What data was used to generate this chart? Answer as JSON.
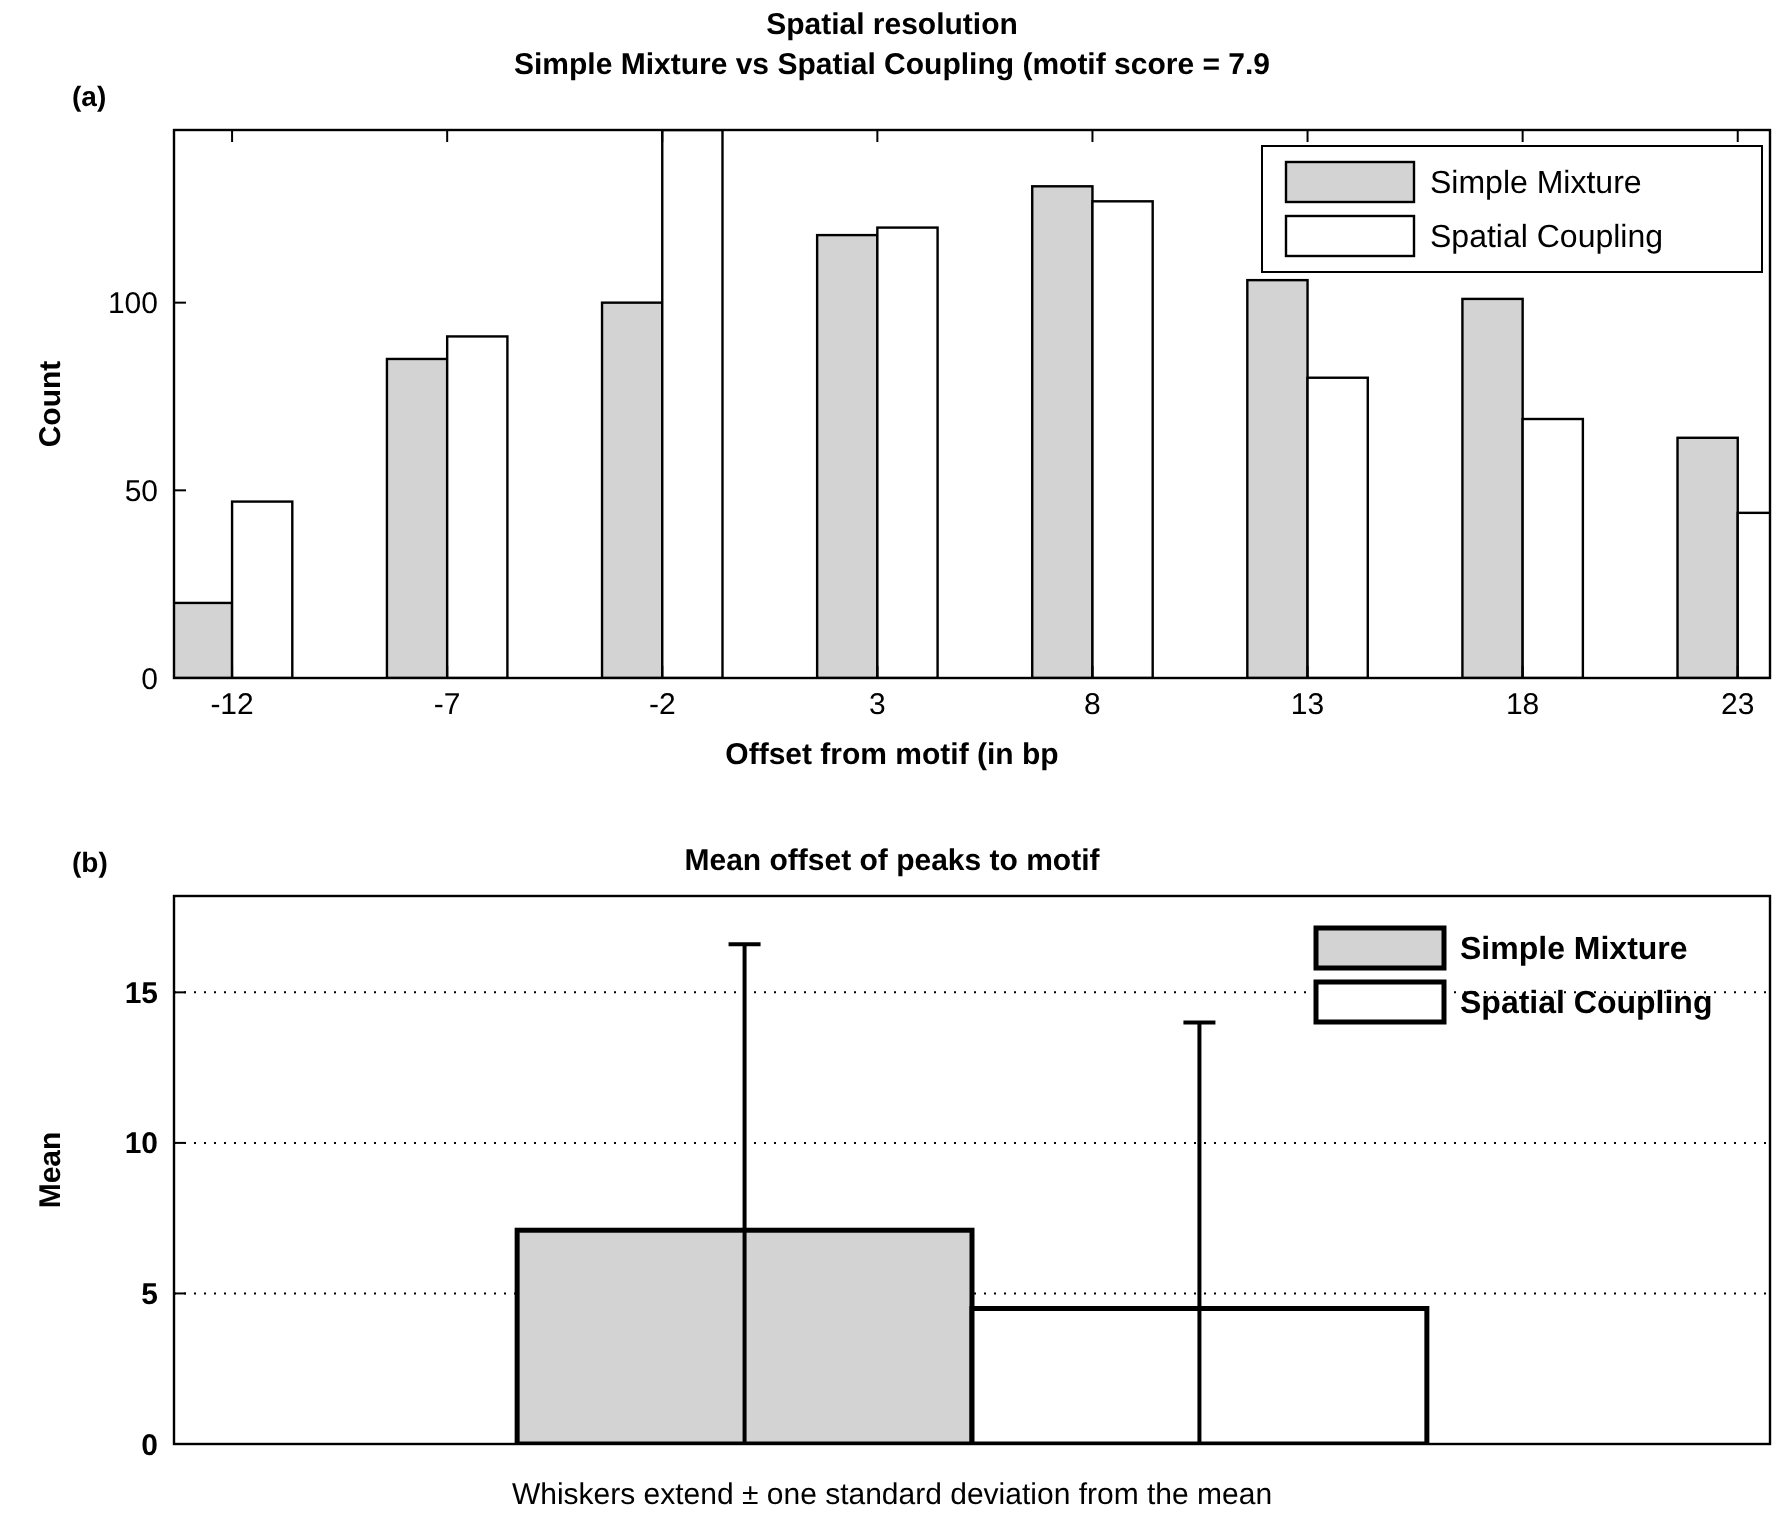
{
  "chart_data": [
    {
      "type": "bar",
      "title": "Spatial resolution",
      "subtitle": "Simple Mixture vs Spatial Coupling (motif score = 7.9",
      "xlabel": "Offset from motif (in bp",
      "ylabel": "Count",
      "annotations": [
        "(a)"
      ],
      "x": [
        -12,
        -7,
        -2,
        3,
        8,
        13,
        18,
        23
      ],
      "series": [
        {
          "name": "Simple Mixture",
          "color": "#d3d3d3",
          "values": [
            20,
            85,
            100,
            118,
            131,
            106,
            101,
            64
          ]
        },
        {
          "name": "Spatial Coupling",
          "color": "#ffffff",
          "values": [
            47,
            91,
            146,
            120,
            127,
            80,
            69,
            44
          ]
        }
      ],
      "xlim": [
        -13.35,
        23.75
      ],
      "xticks": [
        -12,
        -7,
        -2,
        3,
        8,
        13,
        18,
        23
      ],
      "ylim": [
        0,
        146
      ],
      "yticks": [
        0,
        50,
        100
      ],
      "legend": "top right"
    },
    {
      "type": "bar",
      "title": "Mean offset of peaks to motif",
      "ylabel": "Mean",
      "annotations": [
        "(b)",
        "Whiskers extend ± one standard deviation from the mean"
      ],
      "categories": [
        null
      ],
      "series": [
        {
          "name": "Simple Mixture",
          "color": "#d3d3d3",
          "values": [
            7.1
          ],
          "errors": [
            [
              0,
              16.6
            ]
          ]
        },
        {
          "name": "Spatial Coupling",
          "color": "#ffffff",
          "values": [
            4.5
          ],
          "errors": [
            [
              0,
              14.0
            ]
          ]
        }
      ],
      "ylim": [
        0,
        18.2
      ],
      "yticks": [
        0,
        5,
        10,
        15
      ],
      "grid": "y",
      "tick_labels": "y",
      "legend": "top right"
    }
  ]
}
